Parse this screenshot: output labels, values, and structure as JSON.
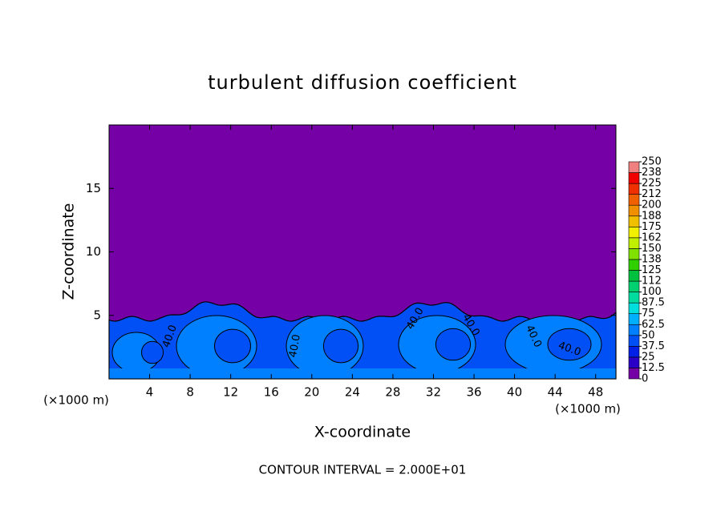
{
  "chart_data": {
    "type": "contour",
    "title": "turbulent diffusion coefficient",
    "xlabel": "X-coordinate",
    "ylabel": "Z-coordinate",
    "x_unit_labels": [
      "(×1000 m)",
      "(×1000 m)"
    ],
    "footer": "CONTOUR INTERVAL = 2.000E+01",
    "contour_labels": [
      "40.0",
      "40.0",
      "40.0",
      "40.0",
      "40.0",
      "40.0"
    ],
    "xlim": [
      0,
      50
    ],
    "xticks": [
      4,
      8,
      12,
      16,
      20,
      24,
      28,
      32,
      36,
      40,
      44,
      48
    ],
    "ylim": [
      0,
      20
    ],
    "yticks": [
      5,
      10,
      15
    ],
    "background_color": "#7400a6",
    "colorbar": {
      "ticks": [
        0,
        12.5,
        25,
        37.5,
        50,
        62.5,
        75,
        87.5,
        100,
        {
          "value": 112.5,
          "label": "112"
        },
        125,
        {
          "value": 137.5,
          "label": "138"
        },
        150,
        {
          "value": 162.5,
          "label": "162"
        },
        175,
        {
          "value": 187.5,
          "label": "188"
        },
        200,
        {
          "value": 212.5,
          "label": "212"
        },
        225,
        {
          "value": 237.5,
          "label": "238"
        },
        250
      ],
      "colors": [
        "#7400a6",
        "#2a00c8",
        "#0020e6",
        "#0050f5",
        "#0080ff",
        "#00b0ff",
        "#00dede",
        "#00dca0",
        "#00d070",
        "#00c040",
        "#30d000",
        "#80e000",
        "#c0f000",
        "#f0f000",
        "#f0c000",
        "#f09000",
        "#f06000",
        "#f03000",
        "#f00000",
        "#f08080"
      ]
    }
  }
}
